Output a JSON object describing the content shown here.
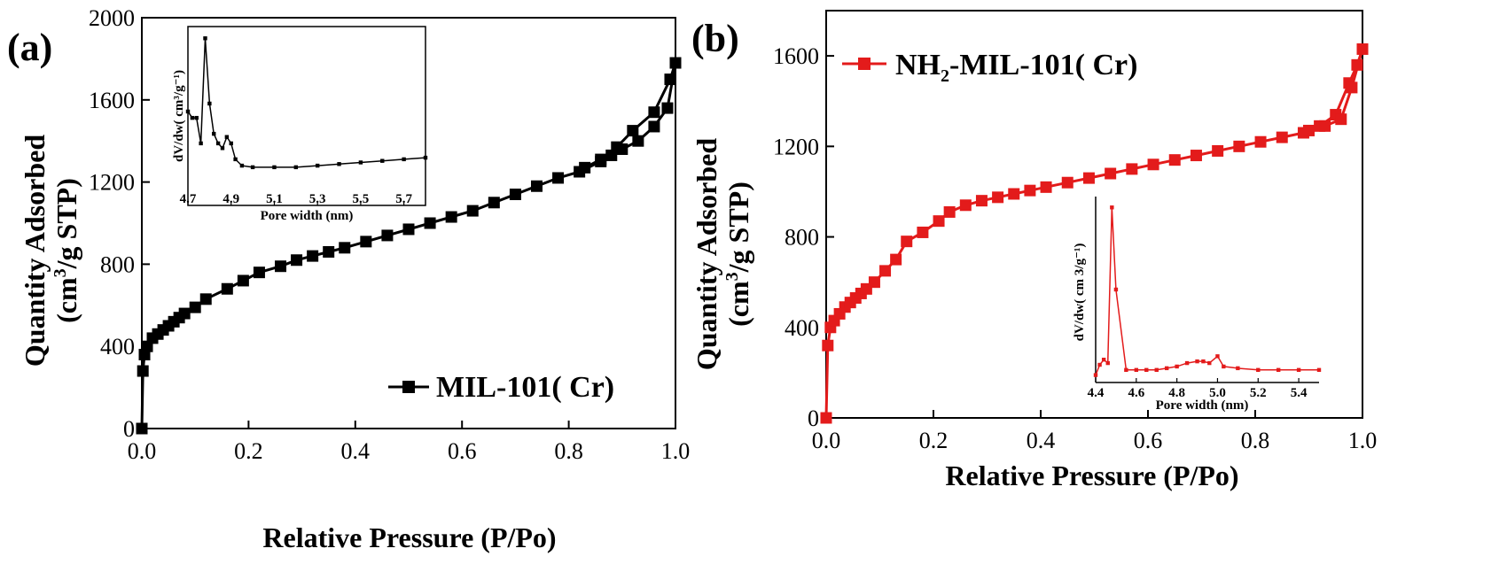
{
  "chart_data": [
    {
      "panel": "(a)",
      "type": "line",
      "xlabel": "Relative Pressure (P/Po)",
      "ylabel_line1": "Quantity Adsorbed",
      "ylabel_line2": "(cm",
      "ylabel_sup": "3",
      "ylabel_line2_end": "/g STP)",
      "xlim": [
        0,
        1
      ],
      "ylim": [
        0,
        2000
      ],
      "xticks": [
        0.0,
        0.2,
        0.4,
        0.6,
        0.8,
        1.0
      ],
      "xtick_labels": [
        "0.0",
        "0.2",
        "0.4",
        "0.6",
        "0.8",
        "1.0"
      ],
      "yticks": [
        0,
        400,
        800,
        1200,
        1600,
        2000
      ],
      "ytick_labels": [
        "0",
        "400",
        "800",
        "1200",
        "1600",
        "2000"
      ],
      "legend": "top-right",
      "color": "#000000",
      "series": [
        {
          "name": "MIL-101( Cr)",
          "x": [
            0.0,
            0.002,
            0.005,
            0.01,
            0.02,
            0.03,
            0.04,
            0.05,
            0.06,
            0.07,
            0.08,
            0.1,
            0.12,
            0.16,
            0.19,
            0.22,
            0.26,
            0.29,
            0.32,
            0.35,
            0.38,
            0.42,
            0.46,
            0.5,
            0.54,
            0.58,
            0.62,
            0.66,
            0.7,
            0.74,
            0.78,
            0.82,
            0.86,
            0.88,
            0.9,
            0.93,
            0.96,
            0.985,
            1.0,
            0.99,
            0.96,
            0.92,
            0.89,
            0.86,
            0.83
          ],
          "y": [
            0,
            280,
            360,
            400,
            440,
            460,
            480,
            500,
            520,
            540,
            560,
            590,
            630,
            680,
            720,
            760,
            790,
            820,
            840,
            860,
            880,
            910,
            940,
            970,
            1000,
            1030,
            1060,
            1100,
            1140,
            1180,
            1220,
            1250,
            1300,
            1330,
            1360,
            1400,
            1470,
            1560,
            1780,
            1700,
            1540,
            1450,
            1370,
            1310,
            1270
          ]
        }
      ],
      "inset": {
        "xlabel": "Pore width (nm)",
        "ylabel": "dV/dw(  cm³/g⁻¹)",
        "xlim": [
          4.7,
          5.8
        ],
        "xtick_labels": [
          "4.7",
          "4.9",
          "5.1",
          "5.3",
          "5.5",
          "5.7"
        ],
        "xticks": [
          4.7,
          4.9,
          5.1,
          5.3,
          5.5,
          5.7
        ],
        "ylim": [
          0,
          1
        ],
        "x": [
          4.7,
          4.72,
          4.74,
          4.76,
          4.78,
          4.8,
          4.82,
          4.84,
          4.86,
          4.88,
          4.9,
          4.92,
          4.95,
          5.0,
          5.1,
          5.2,
          5.3,
          5.4,
          5.5,
          5.6,
          5.7,
          5.8
        ],
        "y": [
          0.5,
          0.46,
          0.46,
          0.3,
          0.96,
          0.55,
          0.36,
          0.3,
          0.27,
          0.34,
          0.3,
          0.2,
          0.16,
          0.15,
          0.15,
          0.15,
          0.16,
          0.17,
          0.18,
          0.19,
          0.2,
          0.21
        ]
      }
    },
    {
      "panel": "(b)",
      "type": "line",
      "xlabel": "Relative Pressure (P/Po)",
      "ylabel_line1": "Quantity Adsorbed",
      "ylabel_line2": "(cm",
      "ylabel_sup": "3",
      "ylabel_line2_end": "/g STP)",
      "xlim": [
        0,
        1
      ],
      "ylim": [
        0,
        1800
      ],
      "xticks": [
        0.0,
        0.2,
        0.4,
        0.6,
        0.8,
        1.0
      ],
      "xtick_labels": [
        "0.0",
        "0.2",
        "0.4",
        "0.6",
        "0.8",
        "1.0"
      ],
      "yticks": [
        0,
        400,
        800,
        1200,
        1600
      ],
      "ytick_labels": [
        "0",
        "400",
        "800",
        "1200",
        "1600"
      ],
      "legend": "top-left",
      "color": "#e31b1b",
      "series": [
        {
          "name_prefix": "NH",
          "name_sub": "2",
          "name_suffix": "-MIL-101(  Cr)",
          "x": [
            0.0,
            0.003,
            0.008,
            0.015,
            0.025,
            0.035,
            0.045,
            0.055,
            0.065,
            0.075,
            0.09,
            0.11,
            0.13,
            0.15,
            0.18,
            0.21,
            0.23,
            0.26,
            0.29,
            0.32,
            0.35,
            0.38,
            0.41,
            0.45,
            0.49,
            0.53,
            0.57,
            0.61,
            0.65,
            0.69,
            0.73,
            0.77,
            0.81,
            0.85,
            0.89,
            0.92,
            0.95,
            0.975,
            0.99,
            1.0,
            0.98,
            0.96,
            0.93,
            0.9
          ],
          "y": [
            0,
            320,
            400,
            430,
            460,
            490,
            510,
            530,
            550,
            570,
            600,
            650,
            700,
            780,
            820,
            870,
            910,
            940,
            960,
            975,
            990,
            1005,
            1020,
            1040,
            1060,
            1080,
            1100,
            1120,
            1140,
            1160,
            1180,
            1200,
            1220,
            1240,
            1260,
            1290,
            1340,
            1480,
            1560,
            1630,
            1460,
            1320,
            1290,
            1270
          ]
        }
      ],
      "inset": {
        "xlabel": "Pore width (nm)",
        "ylabel": "dV/dw(  cm  3/g⁻¹)",
        "xlim": [
          4.4,
          5.5
        ],
        "xtick_labels": [
          "4.4",
          "4.6",
          "4.8",
          "5.0",
          "5.2",
          "5.4"
        ],
        "xticks": [
          4.4,
          4.6,
          4.8,
          5.0,
          5.2,
          5.4
        ],
        "ylim": [
          0,
          1
        ],
        "x": [
          4.4,
          4.42,
          4.44,
          4.46,
          4.48,
          4.5,
          4.55,
          4.6,
          4.65,
          4.7,
          4.75,
          4.8,
          4.85,
          4.9,
          4.93,
          4.96,
          5.0,
          5.03,
          5.1,
          5.2,
          5.3,
          5.4,
          5.5
        ],
        "y": [
          0.0,
          0.06,
          0.09,
          0.07,
          0.98,
          0.5,
          0.03,
          0.03,
          0.03,
          0.03,
          0.04,
          0.05,
          0.07,
          0.08,
          0.08,
          0.07,
          0.11,
          0.05,
          0.04,
          0.03,
          0.03,
          0.03,
          0.03
        ]
      }
    }
  ]
}
